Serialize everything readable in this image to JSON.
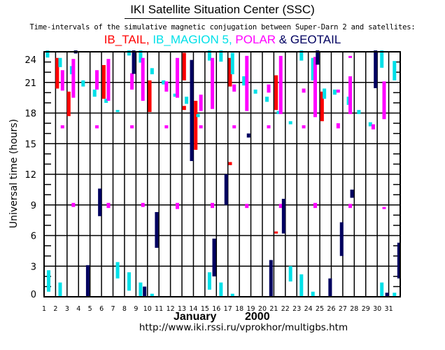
{
  "header": {
    "title": "IKI Satellite Situation Center (SSC)",
    "subtitle": "Time-intervals of the simulative magnetic conjugation between Super-Darn 2 and satellites:"
  },
  "footer": {
    "month": "January",
    "year": "2000",
    "url": "http://www.iki.rssi.ru/vprokhor/multigbs.htm"
  },
  "chart_data": {
    "type": "bar",
    "title": "IKI Satellite Situation Center (SSC)",
    "subtitle": "Time-intervals of the simulative magnetic conjugation between Super-Darn 2 and satellites:",
    "xlabel": "January 2000",
    "ylabel": "Universal time (hours)",
    "xlim": [
      1,
      32
    ],
    "ylim": [
      0,
      24.5
    ],
    "x_ticks": [
      1,
      2,
      3,
      4,
      5,
      6,
      7,
      8,
      9,
      10,
      11,
      12,
      13,
      14,
      15,
      16,
      17,
      18,
      19,
      20,
      21,
      22,
      23,
      24,
      25,
      26,
      27,
      28,
      29,
      30,
      31
    ],
    "y_ticks": [
      0,
      3,
      6,
      9,
      12,
      15,
      18,
      21,
      24
    ],
    "y_minor_step": 1,
    "grid": true,
    "legend": [
      {
        "name": "IB_TAIL",
        "color": "#ff0000",
        "sep": ", "
      },
      {
        "name": "IB_MAGION 5",
        "color": "#00e0e8",
        "sep": ", "
      },
      {
        "name": "POLAR",
        "color": "#ff00ff",
        "sep": " & "
      },
      {
        "name": "GEOTAIL",
        "color": "#000060",
        "sep": ""
      }
    ],
    "legend_position": "top-center",
    "series": [
      {
        "name": "IB_TAIL",
        "color": "#ff0000",
        "intervals": [
          {
            "day": 2.15,
            "start": 20.4,
            "end": 23.4
          },
          {
            "day": 3.15,
            "start": 17.7,
            "end": 20.1
          },
          {
            "day": 6.2,
            "start": 19.4,
            "end": 22.7
          },
          {
            "day": 10.2,
            "start": 18.1,
            "end": 21.2
          },
          {
            "day": 13.2,
            "start": 21.2,
            "end": 23.9
          },
          {
            "day": 13.2,
            "start": 18.3,
            "end": 18.7
          },
          {
            "day": 14.2,
            "start": 14.4,
            "end": 19.2
          },
          {
            "day": 17.2,
            "start": 20.6,
            "end": 23.4
          },
          {
            "day": 17.2,
            "start": 12.9,
            "end": 13.2
          },
          {
            "day": 21.2,
            "start": 18.3,
            "end": 21.7
          },
          {
            "day": 21.2,
            "start": 6.2,
            "end": 6.4
          },
          {
            "day": 25.2,
            "start": 17.2,
            "end": 20.1
          }
        ]
      },
      {
        "name": "IB_MAGION 5",
        "color": "#00e0e8",
        "intervals": [
          {
            "day": 1.3,
            "start": 23.7,
            "end": 24.4
          },
          {
            "day": 1.4,
            "start": 0.5,
            "end": 2.6
          },
          {
            "day": 2.4,
            "start": 22.5,
            "end": 23.4
          },
          {
            "day": 2.4,
            "start": 0.0,
            "end": 1.4
          },
          {
            "day": 3.4,
            "start": 21.8,
            "end": 22.6
          },
          {
            "day": 4.4,
            "start": 20.6,
            "end": 21.2
          },
          {
            "day": 5.4,
            "start": 19.6,
            "end": 20.3
          },
          {
            "day": 6.4,
            "start": 19.0,
            "end": 19.4
          },
          {
            "day": 7.4,
            "start": 18.1,
            "end": 18.3
          },
          {
            "day": 7.4,
            "start": 1.8,
            "end": 3.4
          },
          {
            "day": 8.4,
            "start": 24.0,
            "end": 24.5
          },
          {
            "day": 8.4,
            "start": 0.6,
            "end": 2.4
          },
          {
            "day": 9.4,
            "start": 23.3,
            "end": 24.5
          },
          {
            "day": 9.4,
            "start": 0.0,
            "end": 1.4
          },
          {
            "day": 10.4,
            "start": 21.8,
            "end": 22.4
          },
          {
            "day": 10.4,
            "start": 0.0,
            "end": 0.3
          },
          {
            "day": 11.4,
            "start": 20.8,
            "end": 21.2
          },
          {
            "day": 12.4,
            "start": 19.6,
            "end": 19.9
          },
          {
            "day": 13.4,
            "start": 18.9,
            "end": 19.6
          },
          {
            "day": 14.4,
            "start": 17.6,
            "end": 17.9
          },
          {
            "day": 15.4,
            "start": 23.5,
            "end": 24.5
          },
          {
            "day": 15.4,
            "start": 0.7,
            "end": 2.4
          },
          {
            "day": 16.4,
            "start": 23.4,
            "end": 24.5
          },
          {
            "day": 16.4,
            "start": 0.0,
            "end": 1.4
          },
          {
            "day": 17.4,
            "start": 21.8,
            "end": 23.9
          },
          {
            "day": 17.4,
            "start": 0.0,
            "end": 0.3
          },
          {
            "day": 18.4,
            "start": 20.7,
            "end": 21.6
          },
          {
            "day": 19.4,
            "start": 19.9,
            "end": 20.3
          },
          {
            "day": 20.4,
            "start": 19.1,
            "end": 19.6
          },
          {
            "day": 21.4,
            "start": 17.9,
            "end": 18.2
          },
          {
            "day": 22.45,
            "start": 16.9,
            "end": 17.2
          },
          {
            "day": 22.45,
            "start": 1.5,
            "end": 3.0
          },
          {
            "day": 23.4,
            "start": 23.5,
            "end": 24.5
          },
          {
            "day": 23.4,
            "start": 0.0,
            "end": 2.2
          },
          {
            "day": 24.4,
            "start": 21.2,
            "end": 23.4
          },
          {
            "day": 24.4,
            "start": 0.0,
            "end": 0.5
          },
          {
            "day": 25.4,
            "start": 19.4,
            "end": 20.4
          },
          {
            "day": 26.3,
            "start": 19.8,
            "end": 20.3
          },
          {
            "day": 27.5,
            "start": 18.8,
            "end": 19.6
          },
          {
            "day": 28.4,
            "start": 17.9,
            "end": 18.3
          },
          {
            "day": 29.4,
            "start": 16.7,
            "end": 17.1
          },
          {
            "day": 30.4,
            "start": 22.8,
            "end": 24.5
          },
          {
            "day": 30.4,
            "start": 0.0,
            "end": 1.4
          },
          {
            "day": 31.5,
            "start": 21.2,
            "end": 23.1
          },
          {
            "day": 31.5,
            "start": 0.0,
            "end": 0.4
          }
        ]
      },
      {
        "name": "POLAR",
        "color": "#ff00ff",
        "intervals": [
          {
            "day": 2.6,
            "start": 20.2,
            "end": 22.2
          },
          {
            "day": 2.6,
            "start": 16.5,
            "end": 16.8
          },
          {
            "day": 3.55,
            "start": 19.5,
            "end": 23.3
          },
          {
            "day": 3.55,
            "start": 8.8,
            "end": 9.2
          },
          {
            "day": 5.6,
            "start": 20.3,
            "end": 22.2
          },
          {
            "day": 5.6,
            "start": 16.5,
            "end": 16.8
          },
          {
            "day": 6.6,
            "start": 19.2,
            "end": 23.3
          },
          {
            "day": 6.6,
            "start": 8.7,
            "end": 9.2
          },
          {
            "day": 8.65,
            "start": 20.3,
            "end": 21.9
          },
          {
            "day": 8.65,
            "start": 16.5,
            "end": 16.8
          },
          {
            "day": 9.6,
            "start": 19.2,
            "end": 23.4
          },
          {
            "day": 9.6,
            "start": 8.8,
            "end": 9.2
          },
          {
            "day": 11.65,
            "start": 20.1,
            "end": 21.1
          },
          {
            "day": 11.65,
            "start": 16.5,
            "end": 16.8
          },
          {
            "day": 12.6,
            "start": 19.5,
            "end": 23.4
          },
          {
            "day": 12.6,
            "start": 8.6,
            "end": 9.2
          },
          {
            "day": 14.65,
            "start": 18.2,
            "end": 19.8
          },
          {
            "day": 14.65,
            "start": 16.5,
            "end": 16.8
          },
          {
            "day": 15.65,
            "start": 18.4,
            "end": 23.4
          },
          {
            "day": 15.65,
            "start": 8.7,
            "end": 9.2
          },
          {
            "day": 17.55,
            "start": 20.1,
            "end": 20.8
          },
          {
            "day": 17.55,
            "start": 16.5,
            "end": 16.8
          },
          {
            "day": 18.65,
            "start": 18.2,
            "end": 23.6
          },
          {
            "day": 18.65,
            "start": 8.7,
            "end": 9.1
          },
          {
            "day": 20.55,
            "start": 20.0,
            "end": 20.8
          },
          {
            "day": 20.55,
            "start": 16.5,
            "end": 16.8
          },
          {
            "day": 21.6,
            "start": 17.9,
            "end": 23.6
          },
          {
            "day": 21.6,
            "start": 8.7,
            "end": 9.1
          },
          {
            "day": 23.6,
            "start": 20.0,
            "end": 20.4
          },
          {
            "day": 23.6,
            "start": 16.5,
            "end": 16.8
          },
          {
            "day": 24.6,
            "start": 17.6,
            "end": 23.5
          },
          {
            "day": 24.6,
            "start": 8.7,
            "end": 9.2
          },
          {
            "day": 26.6,
            "start": 20.0,
            "end": 20.3
          },
          {
            "day": 26.6,
            "start": 16.5,
            "end": 17.0
          },
          {
            "day": 27.65,
            "start": 17.9,
            "end": 21.6
          },
          {
            "day": 27.65,
            "start": 23.4,
            "end": 23.6
          },
          {
            "day": 27.65,
            "start": 8.7,
            "end": 9.1
          },
          {
            "day": 29.65,
            "start": 16.4,
            "end": 16.9
          },
          {
            "day": 30.6,
            "start": 17.4,
            "end": 21.1
          },
          {
            "day": 30.6,
            "start": 8.6,
            "end": 8.8
          }
        ]
      },
      {
        "name": "GEOTAIL",
        "color": "#000060",
        "intervals": [
          {
            "day": 3.75,
            "start": 24.1,
            "end": 24.4
          },
          {
            "day": 4.8,
            "start": 0.0,
            "end": 3.1
          },
          {
            "day": 5.85,
            "start": 7.9,
            "end": 10.6
          },
          {
            "day": 8.8,
            "start": 22.2,
            "end": 24.5
          },
          {
            "day": 9.75,
            "start": 0.0,
            "end": 1.0
          },
          {
            "day": 10.8,
            "start": 4.8,
            "end": 8.3
          },
          {
            "day": 13.85,
            "start": 13.3,
            "end": 23.2
          },
          {
            "day": 15.8,
            "start": 2.0,
            "end": 5.7
          },
          {
            "day": 16.85,
            "start": 9.0,
            "end": 12.0
          },
          {
            "day": 18.8,
            "start": 15.6,
            "end": 16.0
          },
          {
            "day": 20.75,
            "start": 0.0,
            "end": 3.6
          },
          {
            "day": 21.85,
            "start": 6.2,
            "end": 9.6
          },
          {
            "day": 24.8,
            "start": 23.1,
            "end": 24.5
          },
          {
            "day": 25.9,
            "start": 0.0,
            "end": 1.8
          },
          {
            "day": 26.9,
            "start": 4.0,
            "end": 7.3
          },
          {
            "day": 27.8,
            "start": 9.7,
            "end": 10.5
          },
          {
            "day": 29.85,
            "start": 20.8,
            "end": 24.5
          },
          {
            "day": 30.85,
            "start": 0.0,
            "end": 0.4
          },
          {
            "day": 31.9,
            "start": 1.8,
            "end": 5.3
          }
        ]
      }
    ]
  }
}
